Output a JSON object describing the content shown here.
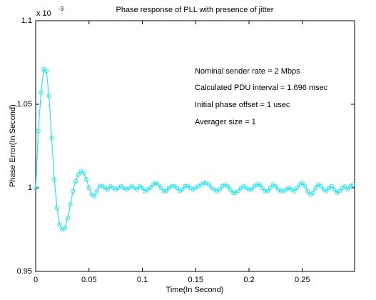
{
  "chart_data": {
    "type": "line",
    "title": "Phase response of PLL with presence of jitter",
    "xlabel": "Time(In Second)",
    "ylabel": "Phase Error(In Second)",
    "y_multiplier": {
      "base": "x 10",
      "exponent": "-3"
    },
    "annotations": [
      "Nominal sender rate = 2 Mbps",
      "Calculated PDU interval = 1.696 msec",
      "Initial phase offset = 1 usec",
      "Averager size = 1"
    ],
    "xlim": [
      0,
      0.299
    ],
    "xticks": [
      0,
      0.05,
      0.1,
      0.15,
      0.2,
      0.25
    ],
    "ylim": [
      0.95,
      1.1
    ],
    "yticks": [
      0.95,
      1,
      1.05,
      1.1
    ],
    "grid": false,
    "marker": "circle",
    "x": [
      0,
      0.0025,
      0.005,
      0.0075,
      0.01,
      0.0125,
      0.015,
      0.0175,
      0.02,
      0.0225,
      0.025,
      0.0275,
      0.03,
      0.0325,
      0.035,
      0.0375,
      0.04,
      0.0425,
      0.045,
      0.0475,
      0.05,
      0.0525,
      0.055,
      0.0575,
      0.06,
      0.0625,
      0.065,
      0.0675,
      0.07,
      0.0725,
      0.075,
      0.0775,
      0.08,
      0.0825,
      0.085,
      0.0875,
      0.09,
      0.0925,
      0.095,
      0.0975,
      0.1,
      0.1025,
      0.105,
      0.1075,
      0.11,
      0.1125,
      0.115,
      0.1175,
      0.12,
      0.1225,
      0.125,
      0.1275,
      0.13,
      0.1325,
      0.135,
      0.1375,
      0.14,
      0.1425,
      0.145,
      0.1475,
      0.15,
      0.1525,
      0.155,
      0.1575,
      0.16,
      0.1625,
      0.165,
      0.1675,
      0.17,
      0.1725,
      0.175,
      0.1775,
      0.18,
      0.1825,
      0.185,
      0.1875,
      0.19,
      0.1925,
      0.195,
      0.1975,
      0.2,
      0.2025,
      0.205,
      0.2075,
      0.21,
      0.2125,
      0.215,
      0.2175,
      0.22,
      0.2225,
      0.225,
      0.2275,
      0.23,
      0.2325,
      0.235,
      0.2375,
      0.24,
      0.2425,
      0.245,
      0.2475,
      0.25,
      0.2525,
      0.255,
      0.2575,
      0.26,
      0.2625,
      0.265,
      0.2675,
      0.27,
      0.2725,
      0.275,
      0.2775,
      0.28,
      0.2825,
      0.285,
      0.2875,
      0.29,
      0.2925,
      0.295,
      0.2975
    ],
    "series": [
      {
        "color": "#00e5ee",
        "values": [
          1.0,
          1.034,
          1.057,
          1.071,
          1.07,
          1.055,
          1.03,
          1.005,
          0.988,
          0.978,
          0.975,
          0.976,
          0.982,
          0.99,
          0.998,
          1.004,
          1.008,
          1.01,
          1.009,
          1.005,
          1.0,
          0.996,
          0.995,
          0.998,
          1.001,
          1.001,
          1.0,
          0.999,
          1.001,
          1.0,
          0.999,
          1.0,
          1.001,
          1.0,
          0.999,
          1.0,
          1.001,
          1.0,
          0.999,
          1.001,
          1.0,
          0.998,
          0.999,
          1.0,
          1.002,
          1.003,
          1.002,
          1.0,
          0.998,
          0.998,
          1.0,
          1.001,
          1.001,
          1.0,
          0.998,
          0.999,
          1.001,
          1.001,
          1.0,
          0.999,
          1.0,
          1.001,
          1.002,
          1.003,
          1.003,
          1.002,
          1.0,
          0.999,
          0.998,
          0.999,
          1.001,
          1.002,
          1.001,
          0.999,
          0.997,
          0.997,
          0.998,
          1.0,
          1.001,
          1.0,
          0.999,
          0.999,
          1.001,
          1.002,
          1.002,
          1.0,
          0.998,
          0.998,
          1.0,
          1.002,
          1.001,
          0.999,
          0.998,
          0.998,
          0.999,
          1.0,
          0.999,
          0.998,
          1.0,
          1.002,
          1.003,
          1.001,
          0.998,
          0.996,
          0.997,
          1.0,
          1.002,
          1.001,
          0.999,
          0.998,
          1.0,
          1.001,
          0.999,
          0.997,
          0.998,
          1.0,
          1.001,
          0.999,
          1.001,
          1.002
        ]
      }
    ]
  }
}
